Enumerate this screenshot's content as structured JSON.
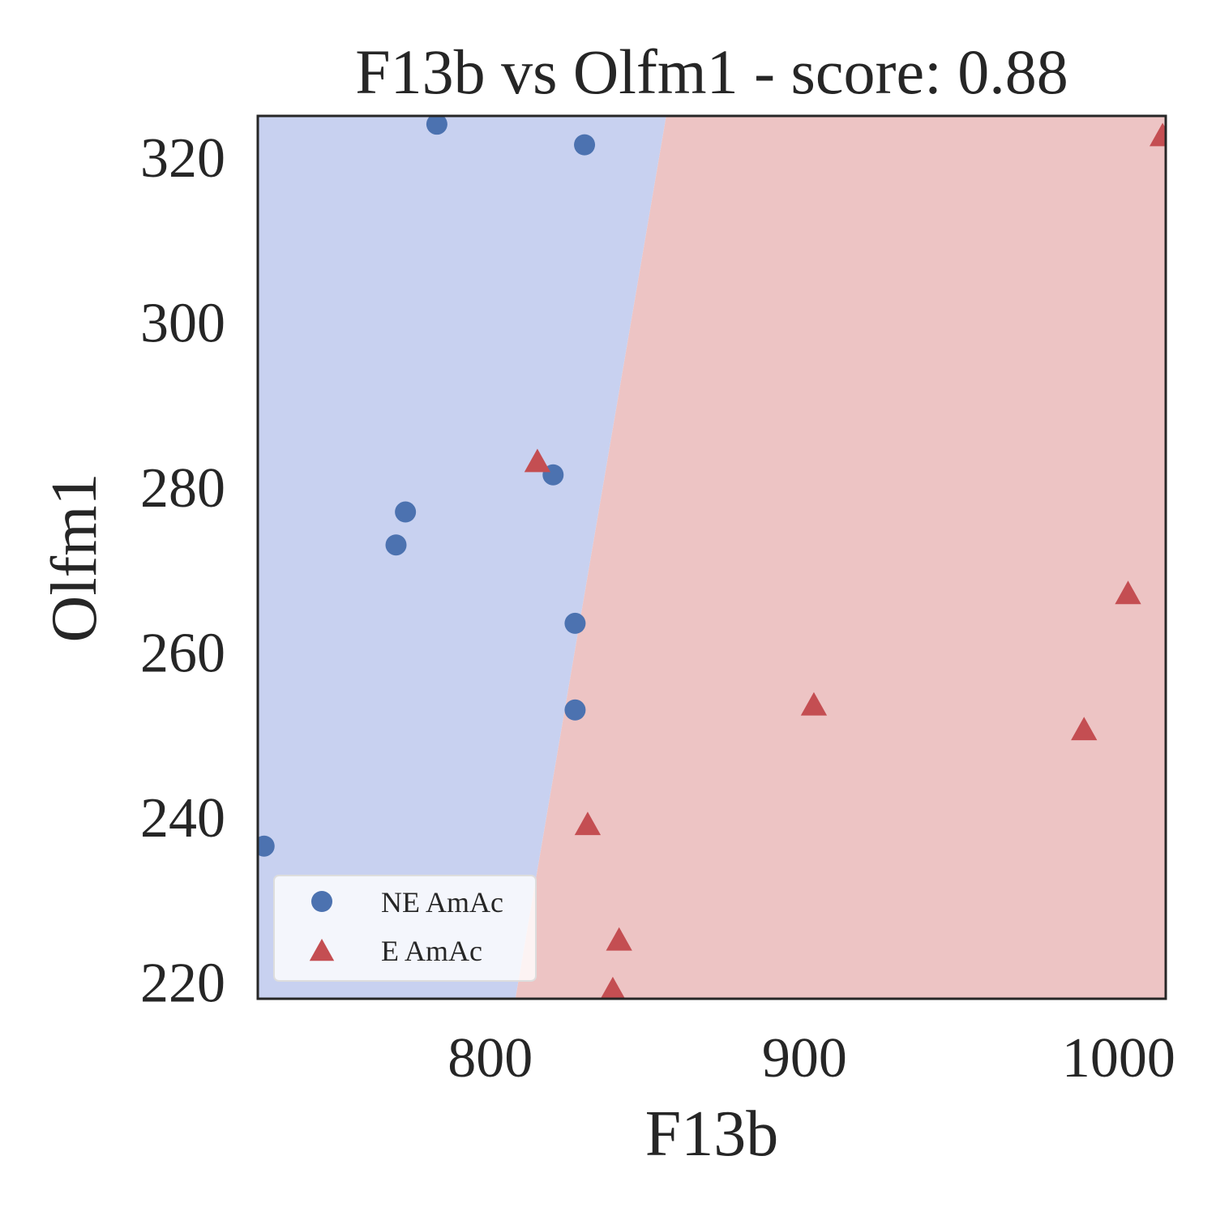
{
  "chart_data": {
    "type": "scatter",
    "title": "F13b vs Olfm1 - score: 0.88",
    "xlabel": "F13b",
    "ylabel": "Olfm1",
    "xlim": [
      726,
      1015
    ],
    "ylim": [
      218,
      325
    ],
    "xticks": [
      800,
      900,
      1000
    ],
    "yticks": [
      220,
      240,
      260,
      280,
      300,
      320
    ],
    "grid": false,
    "legend_position": "lower-left",
    "decision_boundary": {
      "points": [
        [
          808,
          218
        ],
        [
          856,
          325
        ]
      ],
      "left_label": "NE AmAc",
      "right_label": "E AmAc"
    },
    "region_colors": {
      "left": "#c8d1f0",
      "right": "#edc4c4"
    },
    "series": [
      {
        "name": "NE AmAc",
        "marker": "circle",
        "color": "#4c72b0",
        "points": [
          [
            783,
            324
          ],
          [
            830,
            321.5
          ],
          [
            820,
            281.5
          ],
          [
            773,
            277
          ],
          [
            770,
            273
          ],
          [
            827,
            263.5
          ],
          [
            827,
            253
          ],
          [
            728,
            236.5
          ]
        ]
      },
      {
        "name": "E AmAc",
        "marker": "triangle",
        "color": "#c44e52",
        "points": [
          [
            815,
            283
          ],
          [
            1014,
            322.5
          ],
          [
            1003,
            267
          ],
          [
            903,
            253.5
          ],
          [
            989,
            250.5
          ],
          [
            831,
            239
          ],
          [
            841,
            225
          ],
          [
            839,
            219
          ]
        ]
      }
    ]
  }
}
